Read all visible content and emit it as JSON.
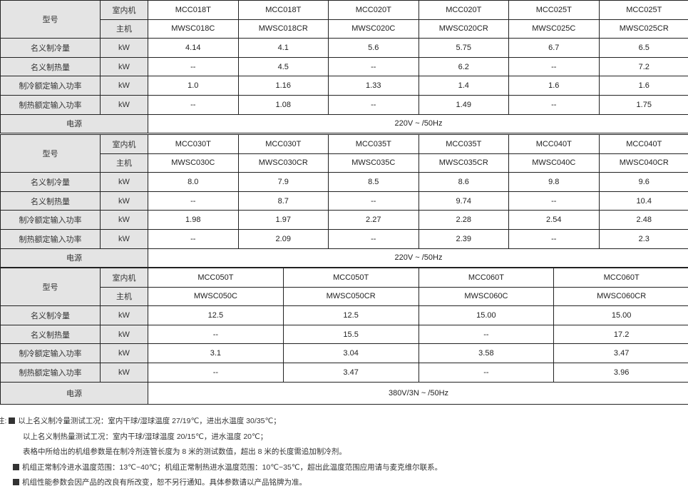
{
  "labels": {
    "model": "型号",
    "indoor": "室内机",
    "outdoor": "主机",
    "cool_cap": "名义制冷量",
    "heat_cap": "名义制热量",
    "cool_power": "制冷额定输入功率",
    "heat_power": "制热额定输入功率",
    "power_supply": "电源",
    "unit": "kW"
  },
  "tables": [
    {
      "indoor": [
        "MCC018T",
        "MCC018T",
        "MCC020T",
        "MCC020T",
        "MCC025T",
        "MCC025T"
      ],
      "outdoor": [
        "MWSC018C",
        "MWSC018CR",
        "MWSC020C",
        "MWSC020CR",
        "MWSC025C",
        "MWSC025CR"
      ],
      "cool_cap": [
        "4.14",
        "4.1",
        "5.6",
        "5.75",
        "6.7",
        "6.5"
      ],
      "heat_cap": [
        "--",
        "4.5",
        "--",
        "6.2",
        "--",
        "7.2"
      ],
      "cool_power": [
        "1.0",
        "1.16",
        "1.33",
        "1.4",
        "1.6",
        "1.6"
      ],
      "heat_power": [
        "--",
        "1.08",
        "--",
        "1.49",
        "--",
        "1.75"
      ],
      "power_supply": "220V ~ /50Hz"
    },
    {
      "indoor": [
        "MCC030T",
        "MCC030T",
        "MCC035T",
        "MCC035T",
        "MCC040T",
        "MCC040T"
      ],
      "outdoor": [
        "MWSC030C",
        "MWSC030CR",
        "MWSC035C",
        "MWSC035CR",
        "MWSC040C",
        "MWSC040CR"
      ],
      "cool_cap": [
        "8.0",
        "7.9",
        "8.5",
        "8.6",
        "9.8",
        "9.6"
      ],
      "heat_cap": [
        "--",
        "8.7",
        "--",
        "9.74",
        "--",
        "10.4"
      ],
      "cool_power": [
        "1.98",
        "1.97",
        "2.27",
        "2.28",
        "2.54",
        "2.48"
      ],
      "heat_power": [
        "--",
        "2.09",
        "--",
        "2.39",
        "--",
        "2.3"
      ],
      "power_supply": "220V ~ /50Hz"
    },
    {
      "indoor": [
        "MCC050T",
        "MCC050T",
        "MCC060T",
        "MCC060T"
      ],
      "outdoor": [
        "MWSC050C",
        "MWSC050CR",
        "MWSC060C",
        "MWSC060CR"
      ],
      "cool_cap": [
        "12.5",
        "12.5",
        "15.00",
        "15.00"
      ],
      "heat_cap": [
        "--",
        "15.5",
        "--",
        "17.2"
      ],
      "cool_power": [
        "3.1",
        "3.04",
        "3.58",
        "3.47"
      ],
      "heat_power": [
        "--",
        "3.47",
        "--",
        "3.96"
      ],
      "power_supply": "380V/3N ~ /50Hz"
    }
  ],
  "notes": {
    "prefix": "注:",
    "n1": "以上名义制冷量测试工况：室内干球/湿球温度 27/19℃，进出水温度 30/35℃；",
    "n2": "以上名义制热量测试工况：室内干球/湿球温度 20/15℃，进水温度 20℃；",
    "n3": "表格中所给出的机组参数是在制冷剂连管长度为 8 米的测试数值，超出 8 米的长度需追加制冷剂。",
    "n4": "机组正常制冷进水温度范围：13℃~40℃；机组正常制热进水温度范围：10℃~35℃，超出此温度范围应用请与麦克维尔联系。",
    "n5": "机组性能参数会因产品的改良有所改变，恕不另行通知。具体参数请以产品铭牌为准。"
  }
}
